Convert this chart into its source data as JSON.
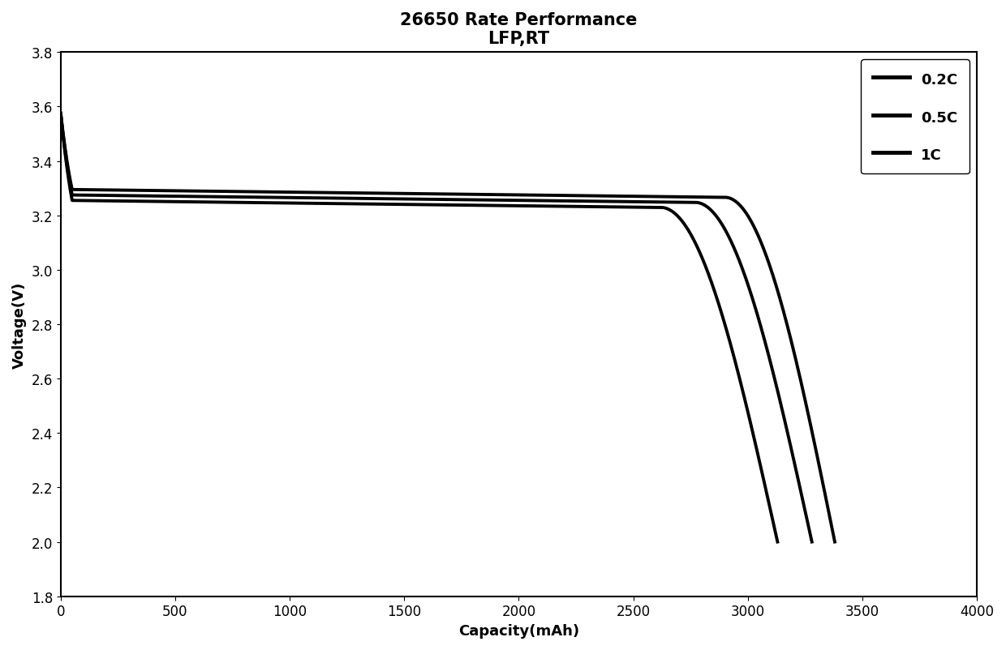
{
  "title_line1": "26650 Rate Performance",
  "title_line2": "LFP,RT",
  "xlabel": "Capacity(mAh)",
  "ylabel": "Voltage(V)",
  "xlim": [
    0,
    4000
  ],
  "ylim": [
    1.8,
    3.8
  ],
  "xticks": [
    0,
    500,
    1000,
    1500,
    2000,
    2500,
    3000,
    3500,
    4000
  ],
  "yticks": [
    1.8,
    2.0,
    2.2,
    2.4,
    2.6,
    2.8,
    3.0,
    3.2,
    3.4,
    3.6,
    3.8
  ],
  "line_color": "#000000",
  "background_color": "#ffffff",
  "legend_labels": [
    "0.2C",
    "0.5C",
    "1C"
  ],
  "curves": [
    {
      "label": "0.2C",
      "max_cap": 3380,
      "v_plateau": 3.295,
      "v_start": 3.575,
      "v_cutoff": 2.0,
      "drop_begin": 2900,
      "plateau_slope": -1e-05
    },
    {
      "label": "0.5C",
      "max_cap": 3280,
      "v_plateau": 3.275,
      "v_start": 3.575,
      "v_cutoff": 2.0,
      "drop_begin": 2770,
      "plateau_slope": -1e-05
    },
    {
      "label": "1C",
      "max_cap": 3130,
      "v_plateau": 3.255,
      "v_start": 3.575,
      "v_cutoff": 2.0,
      "drop_begin": 2620,
      "plateau_slope": -1e-05
    }
  ],
  "title_fontsize": 15,
  "label_fontsize": 13,
  "tick_fontsize": 12,
  "legend_fontsize": 13,
  "linewidth": 2.8
}
